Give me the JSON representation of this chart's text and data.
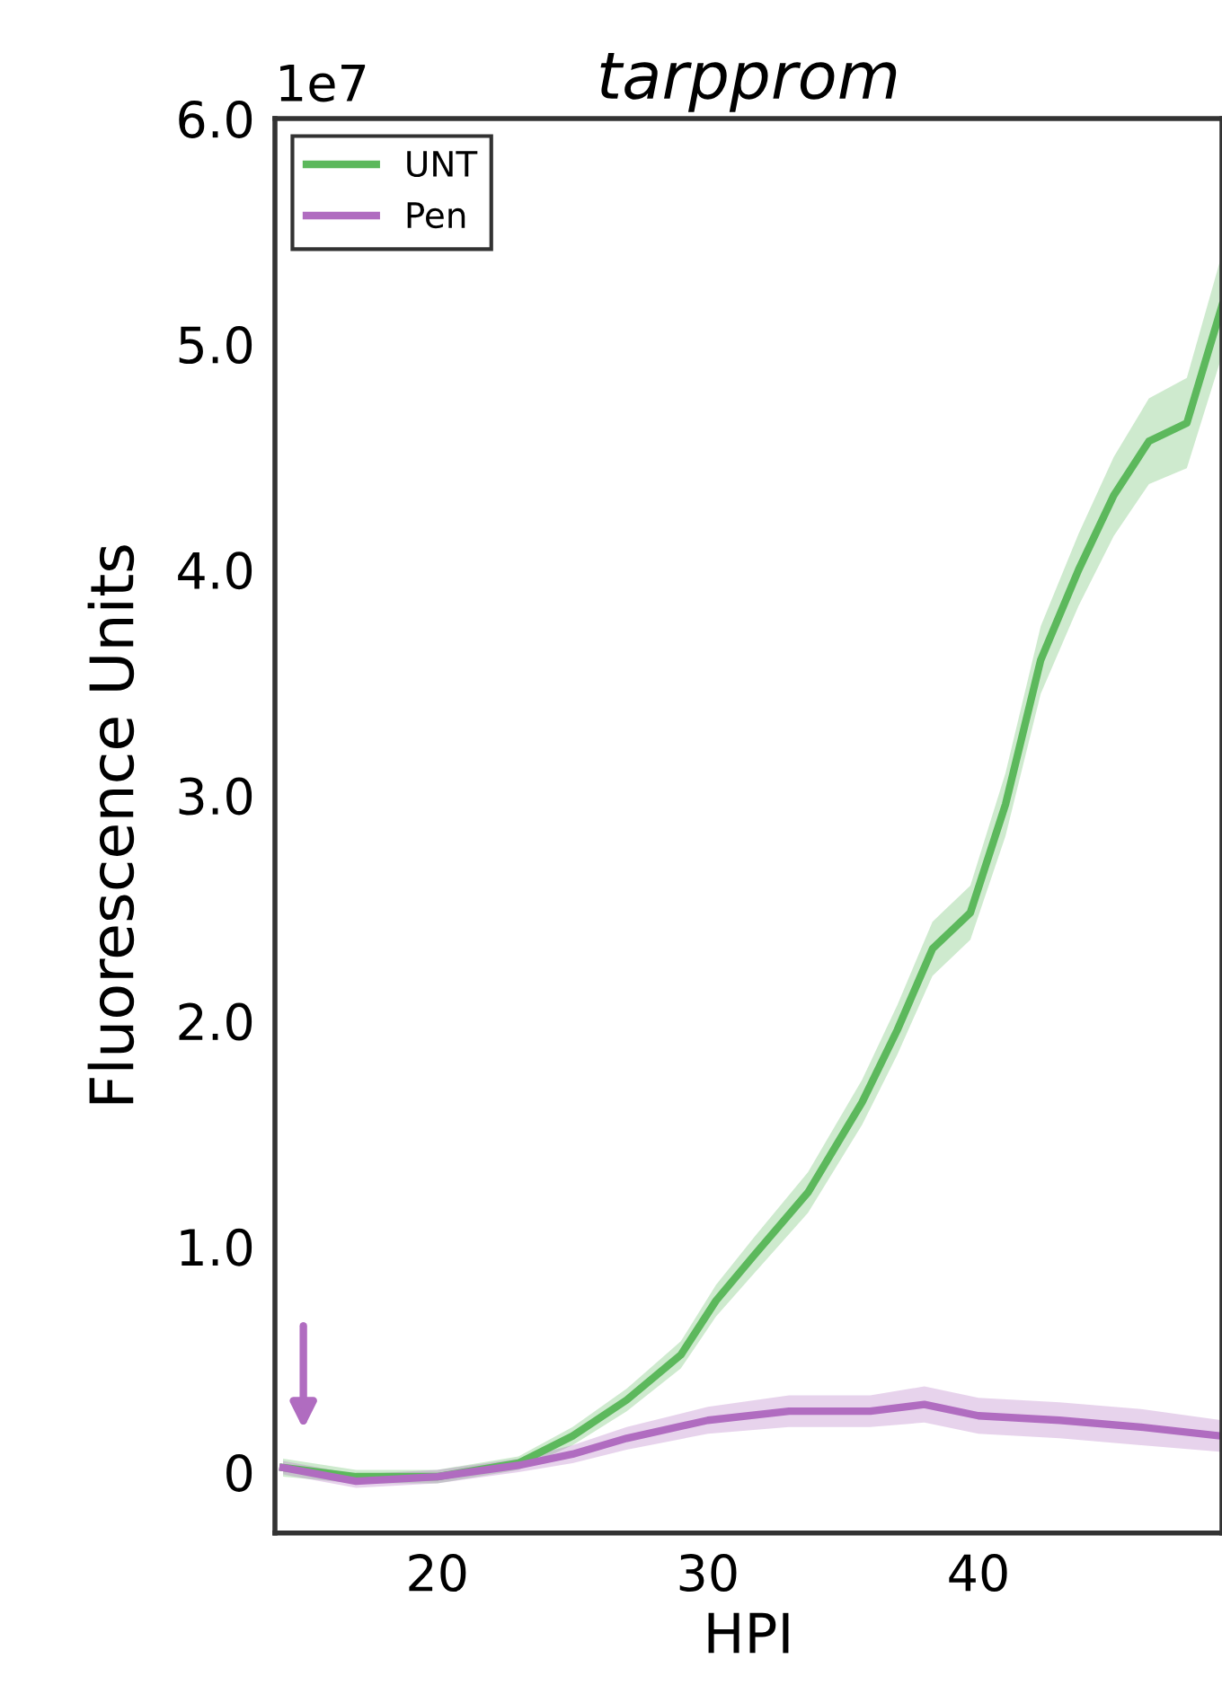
{
  "chart_data": {
    "type": "line",
    "title": "tarpprom",
    "xlabel": "HPI",
    "ylabel": "Fluorescence Units",
    "annotations": [
      "1e7"
    ],
    "xlim": [
      14,
      49
    ],
    "xticks": [
      20,
      30,
      40
    ],
    "ylim": [
      -0.27,
      6.0
    ],
    "yticks": [
      0,
      {
        "value": 1,
        "label": "1.0"
      },
      {
        "value": 2,
        "label": "2.0"
      },
      {
        "value": 3,
        "label": "3.0"
      },
      {
        "value": 4,
        "label": "4.0"
      },
      {
        "value": 5,
        "label": "5.0"
      },
      {
        "value": 6,
        "label": "6.0"
      }
    ],
    "legend": "top left",
    "grid": false,
    "line_style": "solid",
    "marker": "none",
    "series": [
      {
        "name": "UNT",
        "color": "#5cb85c",
        "x": [
          14.3,
          17,
          20,
          23,
          25,
          27,
          29,
          30.3,
          31.7,
          33.7,
          35.7,
          37,
          38.3,
          39.7,
          41,
          42.3,
          43.7,
          45,
          46.3,
          47.7,
          49
        ],
        "values": [
          0.02,
          -0.02,
          -0.02,
          0.04,
          0.16,
          0.32,
          0.52,
          0.76,
          0.96,
          1.24,
          1.64,
          1.96,
          2.32,
          2.48,
          2.96,
          3.6,
          4.0,
          4.33,
          4.57,
          4.65,
          5.17
        ],
        "lower": [
          -0.02,
          -0.05,
          -0.05,
          0.01,
          0.12,
          0.27,
          0.46,
          0.69,
          0.88,
          1.15,
          1.54,
          1.85,
          2.2,
          2.36,
          2.82,
          3.45,
          3.84,
          4.15,
          4.38,
          4.45,
          4.95
        ],
        "upper": [
          0.06,
          0.01,
          0.01,
          0.07,
          0.2,
          0.37,
          0.58,
          0.83,
          1.04,
          1.33,
          1.74,
          2.07,
          2.44,
          2.6,
          3.1,
          3.75,
          4.16,
          4.5,
          4.76,
          4.85,
          5.4
        ]
      },
      {
        "name": "Pen",
        "color": "#b06cc0",
        "x": [
          14.3,
          17,
          20,
          23,
          25,
          27,
          30,
          33,
          36,
          38,
          40,
          43,
          46,
          49
        ],
        "values": [
          0.02,
          -0.04,
          -0.02,
          0.03,
          0.08,
          0.15,
          0.23,
          0.27,
          0.27,
          0.3,
          0.25,
          0.23,
          0.2,
          0.16
        ],
        "lower": [
          -0.01,
          -0.07,
          -0.05,
          0.0,
          0.04,
          0.1,
          0.17,
          0.2,
          0.2,
          0.22,
          0.17,
          0.15,
          0.12,
          0.09
        ],
        "upper": [
          0.05,
          -0.01,
          0.01,
          0.06,
          0.12,
          0.2,
          0.29,
          0.34,
          0.34,
          0.38,
          0.33,
          0.31,
          0.28,
          0.23
        ]
      }
    ]
  }
}
